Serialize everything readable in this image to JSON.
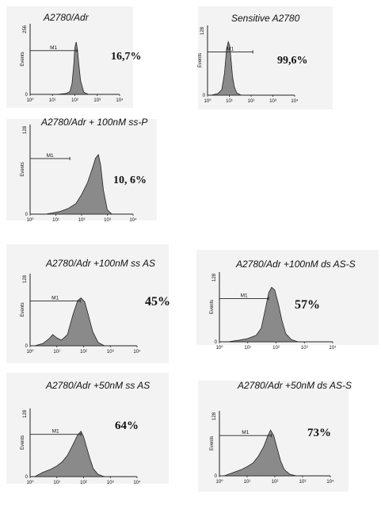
{
  "chart_data": [
    {
      "type": "area",
      "title": "A2780/Adr",
      "ylabel": "Events",
      "xscale": "log",
      "xlim": [
        1,
        10000
      ],
      "ylim": [
        0,
        256
      ],
      "ytick_top": "256",
      "ytick_bottom": "0",
      "xticks": [
        "10⁰",
        "10¹",
        "10²",
        "10³",
        "10⁴"
      ],
      "marker": {
        "label": "M1",
        "x_from": 1,
        "x_to": 125
      },
      "annotation": "16,7%",
      "series": [
        {
          "x": [
            15,
            40,
            60,
            75,
            90,
            100,
            115,
            130,
            150,
            180,
            250,
            400
          ],
          "y": [
            0,
            3,
            10,
            40,
            110,
            170,
            190,
            165,
            110,
            50,
            8,
            0
          ]
        }
      ]
    },
    {
      "type": "area",
      "title": "Sensitive A2780",
      "ylabel": "Events",
      "xscale": "log",
      "xlim": [
        1,
        10000
      ],
      "ylim": [
        0,
        128
      ],
      "ytick_top": "128",
      "ytick_bottom": "0",
      "xticks": [
        "10⁰",
        "10¹",
        "10²",
        "10³",
        "10⁴"
      ],
      "marker": {
        "label": "M1",
        "x_from": 1,
        "x_to": 120
      },
      "annotation": "99,6%",
      "series": [
        {
          "x": [
            1.5,
            3,
            4.5,
            6,
            7.5,
            9,
            10.5,
            12,
            14,
            17,
            22,
            35
          ],
          "y": [
            0,
            3,
            10,
            40,
            85,
            98,
            90,
            65,
            35,
            15,
            4,
            0
          ]
        }
      ]
    },
    {
      "type": "area",
      "title": "A2780/Adr + 100nM ss-P",
      "ylabel": "Events",
      "xscale": "log",
      "xlim": [
        1,
        10000
      ],
      "ylim": [
        0,
        128
      ],
      "ytick_top": "128",
      "ytick_bottom": "0",
      "xticks": [
        "10⁰",
        "10¹",
        "10²",
        "10³",
        "10⁴"
      ],
      "marker": {
        "label": "M1",
        "x_from": 1,
        "x_to": 35
      },
      "annotation": "10, 6%",
      "series": [
        {
          "x": [
            4,
            8,
            15,
            30,
            60,
            100,
            170,
            260,
            350,
            450,
            550,
            700,
            1000,
            1500
          ],
          "y": [
            0,
            2,
            4,
            8,
            15,
            28,
            45,
            65,
            80,
            85,
            70,
            35,
            6,
            0
          ]
        }
      ]
    },
    {
      "type": "area",
      "title": "A2780/Adr +100nM ss AS",
      "ylabel": "Events",
      "xscale": "log",
      "xlim": [
        1,
        10000
      ],
      "ylim": [
        0,
        128
      ],
      "ytick_top": "128",
      "ytick_bottom": "0",
      "xticks": [
        "10⁰",
        "10¹",
        "10²",
        "10³",
        "10⁴"
      ],
      "marker": {
        "label": "M1",
        "x_from": 1,
        "x_to": 75
      },
      "annotation": "45%",
      "series": [
        {
          "x": [
            1.5,
            3,
            5,
            7,
            10,
            15,
            25,
            40,
            60,
            80,
            110,
            150,
            220,
            350,
            600
          ],
          "y": [
            0,
            4,
            12,
            20,
            14,
            10,
            20,
            55,
            80,
            85,
            78,
            55,
            25,
            6,
            0
          ]
        }
      ]
    },
    {
      "type": "area",
      "title": "A2780/Adr +100nM ds AS-S",
      "ylabel": "Events",
      "xscale": "log",
      "xlim": [
        1,
        10000
      ],
      "ylim": [
        0,
        128
      ],
      "ytick_top": "128",
      "ytick_bottom": "0",
      "xticks": [
        "10⁰",
        "10¹",
        "10²",
        "10³",
        "10⁴"
      ],
      "marker": {
        "label": "M1",
        "x_from": 1,
        "x_to": 55
      },
      "annotation": "57%",
      "series": [
        {
          "x": [
            2,
            5,
            10,
            20,
            30,
            40,
            55,
            70,
            90,
            120,
            160,
            220,
            350,
            600
          ],
          "y": [
            0,
            3,
            6,
            12,
            25,
            55,
            90,
            100,
            95,
            70,
            40,
            15,
            4,
            0
          ]
        }
      ]
    },
    {
      "type": "area",
      "title": "A2780/Adr +50nM ss AS",
      "ylabel": "Events",
      "xscale": "log",
      "xlim": [
        1,
        10000
      ],
      "ylim": [
        0,
        128
      ],
      "ytick_top": "128",
      "ytick_bottom": "0",
      "xticks": [
        "10⁰",
        "10¹",
        "10²",
        "10³",
        "10⁴"
      ],
      "marker": {
        "label": "M1",
        "x_from": 1,
        "x_to": 80
      },
      "annotation": "64%",
      "series": [
        {
          "x": [
            1.5,
            3,
            6,
            10,
            16,
            25,
            40,
            60,
            80,
            100,
            130,
            170,
            230,
            350,
            600
          ],
          "y": [
            0,
            8,
            14,
            20,
            28,
            40,
            60,
            78,
            85,
            75,
            55,
            35,
            15,
            4,
            0
          ]
        }
      ]
    },
    {
      "type": "area",
      "title": "A2780/Adr +50nM ds AS-S",
      "ylabel": "Events",
      "xscale": "log",
      "xlim": [
        1,
        10000
      ],
      "ylim": [
        0,
        128
      ],
      "ytick_top": "128",
      "ytick_bottom": "0",
      "xticks": [
        "10⁰",
        "10¹",
        "10²",
        "10³",
        "10⁴"
      ],
      "marker": {
        "label": "M1",
        "x_from": 1,
        "x_to": 75
      },
      "annotation": "73%",
      "series": [
        {
          "x": [
            1.5,
            3,
            6,
            10,
            16,
            25,
            40,
            55,
            70,
            90,
            120,
            160,
            220,
            350,
            600
          ],
          "y": [
            0,
            6,
            12,
            18,
            25,
            38,
            58,
            78,
            90,
            80,
            55,
            30,
            12,
            3,
            0
          ]
        }
      ]
    }
  ]
}
